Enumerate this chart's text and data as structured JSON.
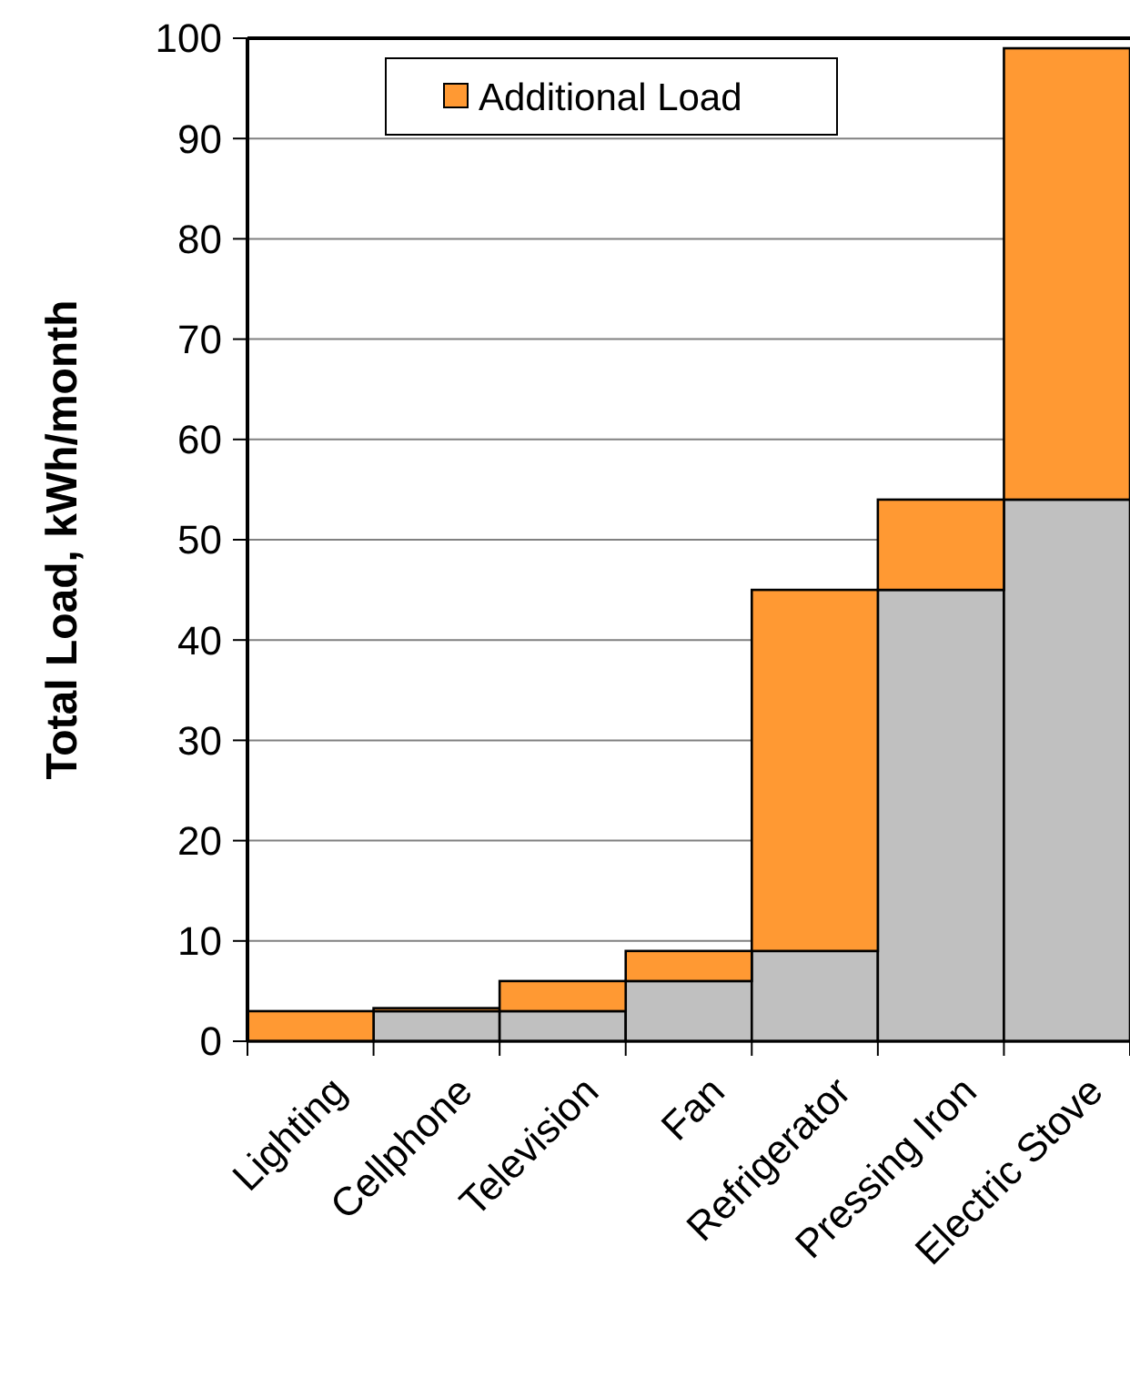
{
  "chart_data": {
    "type": "bar",
    "stacked": true,
    "ylabel": "Total Load, kWh/month",
    "categories": [
      "Lighting",
      "Cellphone",
      "Television",
      "Fan",
      "Refrigerator",
      "Pressing Iron",
      "Electric Stove"
    ],
    "series": [
      {
        "color": "#c0c0c0",
        "values": [
          0,
          3,
          3,
          6,
          9,
          45,
          54
        ]
      },
      {
        "name": "Additional Load",
        "color": "#ff9933",
        "values": [
          3,
          0.3,
          3,
          3,
          36,
          9,
          45
        ]
      }
    ],
    "ylim": [
      0,
      100
    ],
    "yticks": [
      0,
      10,
      20,
      30,
      40,
      50,
      60,
      70,
      80,
      90,
      100
    ],
    "grid": "y",
    "legend": "top"
  }
}
